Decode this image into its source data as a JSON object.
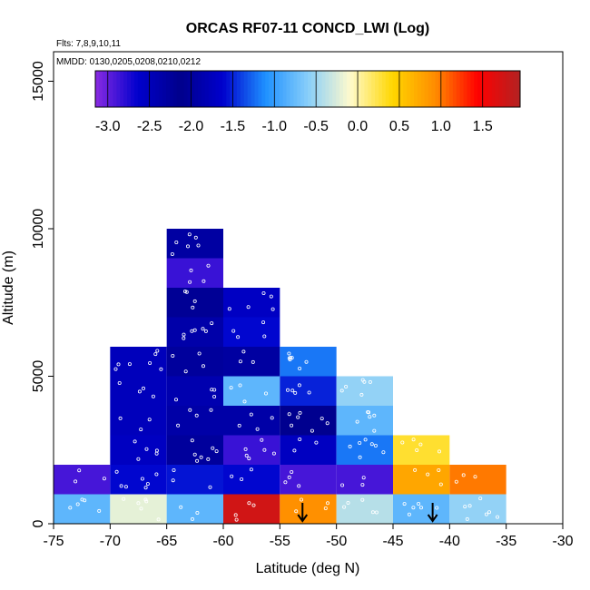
{
  "chart_data": {
    "type": "heatmap",
    "title": "ORCAS RF07-11 CONCD_LWI (Log)",
    "notes": [
      "Flts: 7,8,9,10,11",
      "MMDD: 0130,0205,0208,0210,0212"
    ],
    "xlabel": "Latitude (deg N)",
    "ylabel": "Altitude (m)",
    "xlim": [
      -75,
      -30
    ],
    "ylim": [
      0,
      16000
    ],
    "xticks": [
      -75,
      -70,
      -65,
      -60,
      -55,
      -50,
      -45,
      -40,
      -35,
      -30
    ],
    "yticks": [
      0,
      5000,
      10000,
      15000
    ],
    "colorbar": {
      "ticks": [
        -3.0,
        -2.5,
        -2.0,
        -1.5,
        -1.0,
        -0.5,
        0.0,
        0.5,
        1.0,
        1.5
      ],
      "tick_labels": [
        "-3.0",
        "-2.5",
        "-2.0",
        "-1.5",
        "-1.0",
        "-0.5",
        "0.0",
        "0.5",
        "1.0",
        "1.5"
      ],
      "range": [
        -3.15,
        1.95
      ],
      "colors": [
        "#8a2be2",
        "#0000cd",
        "#00008b",
        "#0000cd",
        "#1e90ff",
        "#87cefa",
        "#fffacd",
        "#ffd700",
        "#ff8c00",
        "#ff0000",
        "#b22222"
      ]
    },
    "cells": [
      {
        "lat": -72.5,
        "alt": 500,
        "value": -0.8
      },
      {
        "lat": -67.5,
        "alt": 500,
        "value": -0.2
      },
      {
        "lat": -62.5,
        "alt": 500,
        "value": -0.8
      },
      {
        "lat": -57.5,
        "alt": 500,
        "value": 1.75
      },
      {
        "lat": -52.5,
        "alt": 500,
        "value": 0.9
      },
      {
        "lat": -47.5,
        "alt": 500,
        "value": -0.4
      },
      {
        "lat": -42.5,
        "alt": 500,
        "value": -0.8
      },
      {
        "lat": -37.5,
        "alt": 500,
        "value": -0.55
      },
      {
        "lat": -72.5,
        "alt": 1500,
        "value": -2.9
      },
      {
        "lat": -67.5,
        "alt": 1500,
        "value": -1.6
      },
      {
        "lat": -62.5,
        "alt": 1500,
        "value": -1.55
      },
      {
        "lat": -57.5,
        "alt": 1500,
        "value": -1.6
      },
      {
        "lat": -52.5,
        "alt": 1500,
        "value": -2.9
      },
      {
        "lat": -47.5,
        "alt": 1500,
        "value": -2.9
      },
      {
        "lat": -42.5,
        "alt": 1500,
        "value": 0.75
      },
      {
        "lat": -37.5,
        "alt": 1500,
        "value": 1.0
      },
      {
        "lat": -67.5,
        "alt": 2500,
        "value": -2.55
      },
      {
        "lat": -62.5,
        "alt": 2500,
        "value": -2.0
      },
      {
        "lat": -57.5,
        "alt": 2500,
        "value": -2.85
      },
      {
        "lat": -52.5,
        "alt": 2500,
        "value": -2.55
      },
      {
        "lat": -47.5,
        "alt": 2500,
        "value": -1.2
      },
      {
        "lat": -42.5,
        "alt": 2500,
        "value": 0.3
      },
      {
        "lat": -67.5,
        "alt": 3500,
        "value": -2.5
      },
      {
        "lat": -62.5,
        "alt": 3500,
        "value": -2.35
      },
      {
        "lat": -57.5,
        "alt": 3500,
        "value": -2.35
      },
      {
        "lat": -52.5,
        "alt": 3500,
        "value": -2.1
      },
      {
        "lat": -47.5,
        "alt": 3500,
        "value": -0.8
      },
      {
        "lat": -67.5,
        "alt": 4500,
        "value": -2.5
      },
      {
        "lat": -62.5,
        "alt": 4500,
        "value": -1.85
      },
      {
        "lat": -57.5,
        "alt": 4500,
        "value": -0.8
      },
      {
        "lat": -52.5,
        "alt": 4500,
        "value": -1.5
      },
      {
        "lat": -47.5,
        "alt": 4500,
        "value": -0.55
      },
      {
        "lat": -67.5,
        "alt": 5500,
        "value": -2.5
      },
      {
        "lat": -62.5,
        "alt": 5500,
        "value": -2.0
      },
      {
        "lat": -57.5,
        "alt": 5500,
        "value": -2.3
      },
      {
        "lat": -52.5,
        "alt": 5500,
        "value": -1.2
      },
      {
        "lat": -62.5,
        "alt": 6500,
        "value": -1.9
      },
      {
        "lat": -57.5,
        "alt": 6500,
        "value": -1.6
      },
      {
        "lat": -62.5,
        "alt": 7500,
        "value": -2.05
      },
      {
        "lat": -57.5,
        "alt": 7500,
        "value": -1.7
      },
      {
        "lat": -62.5,
        "alt": 8500,
        "value": -2.85
      },
      {
        "lat": -62.5,
        "alt": 9500,
        "value": -1.95
      }
    ],
    "markers": [
      {
        "type": "arrow-down",
        "lat": -53,
        "alt": 500
      },
      {
        "type": "arrow-down",
        "lat": -41.5,
        "alt": 500
      }
    ]
  }
}
